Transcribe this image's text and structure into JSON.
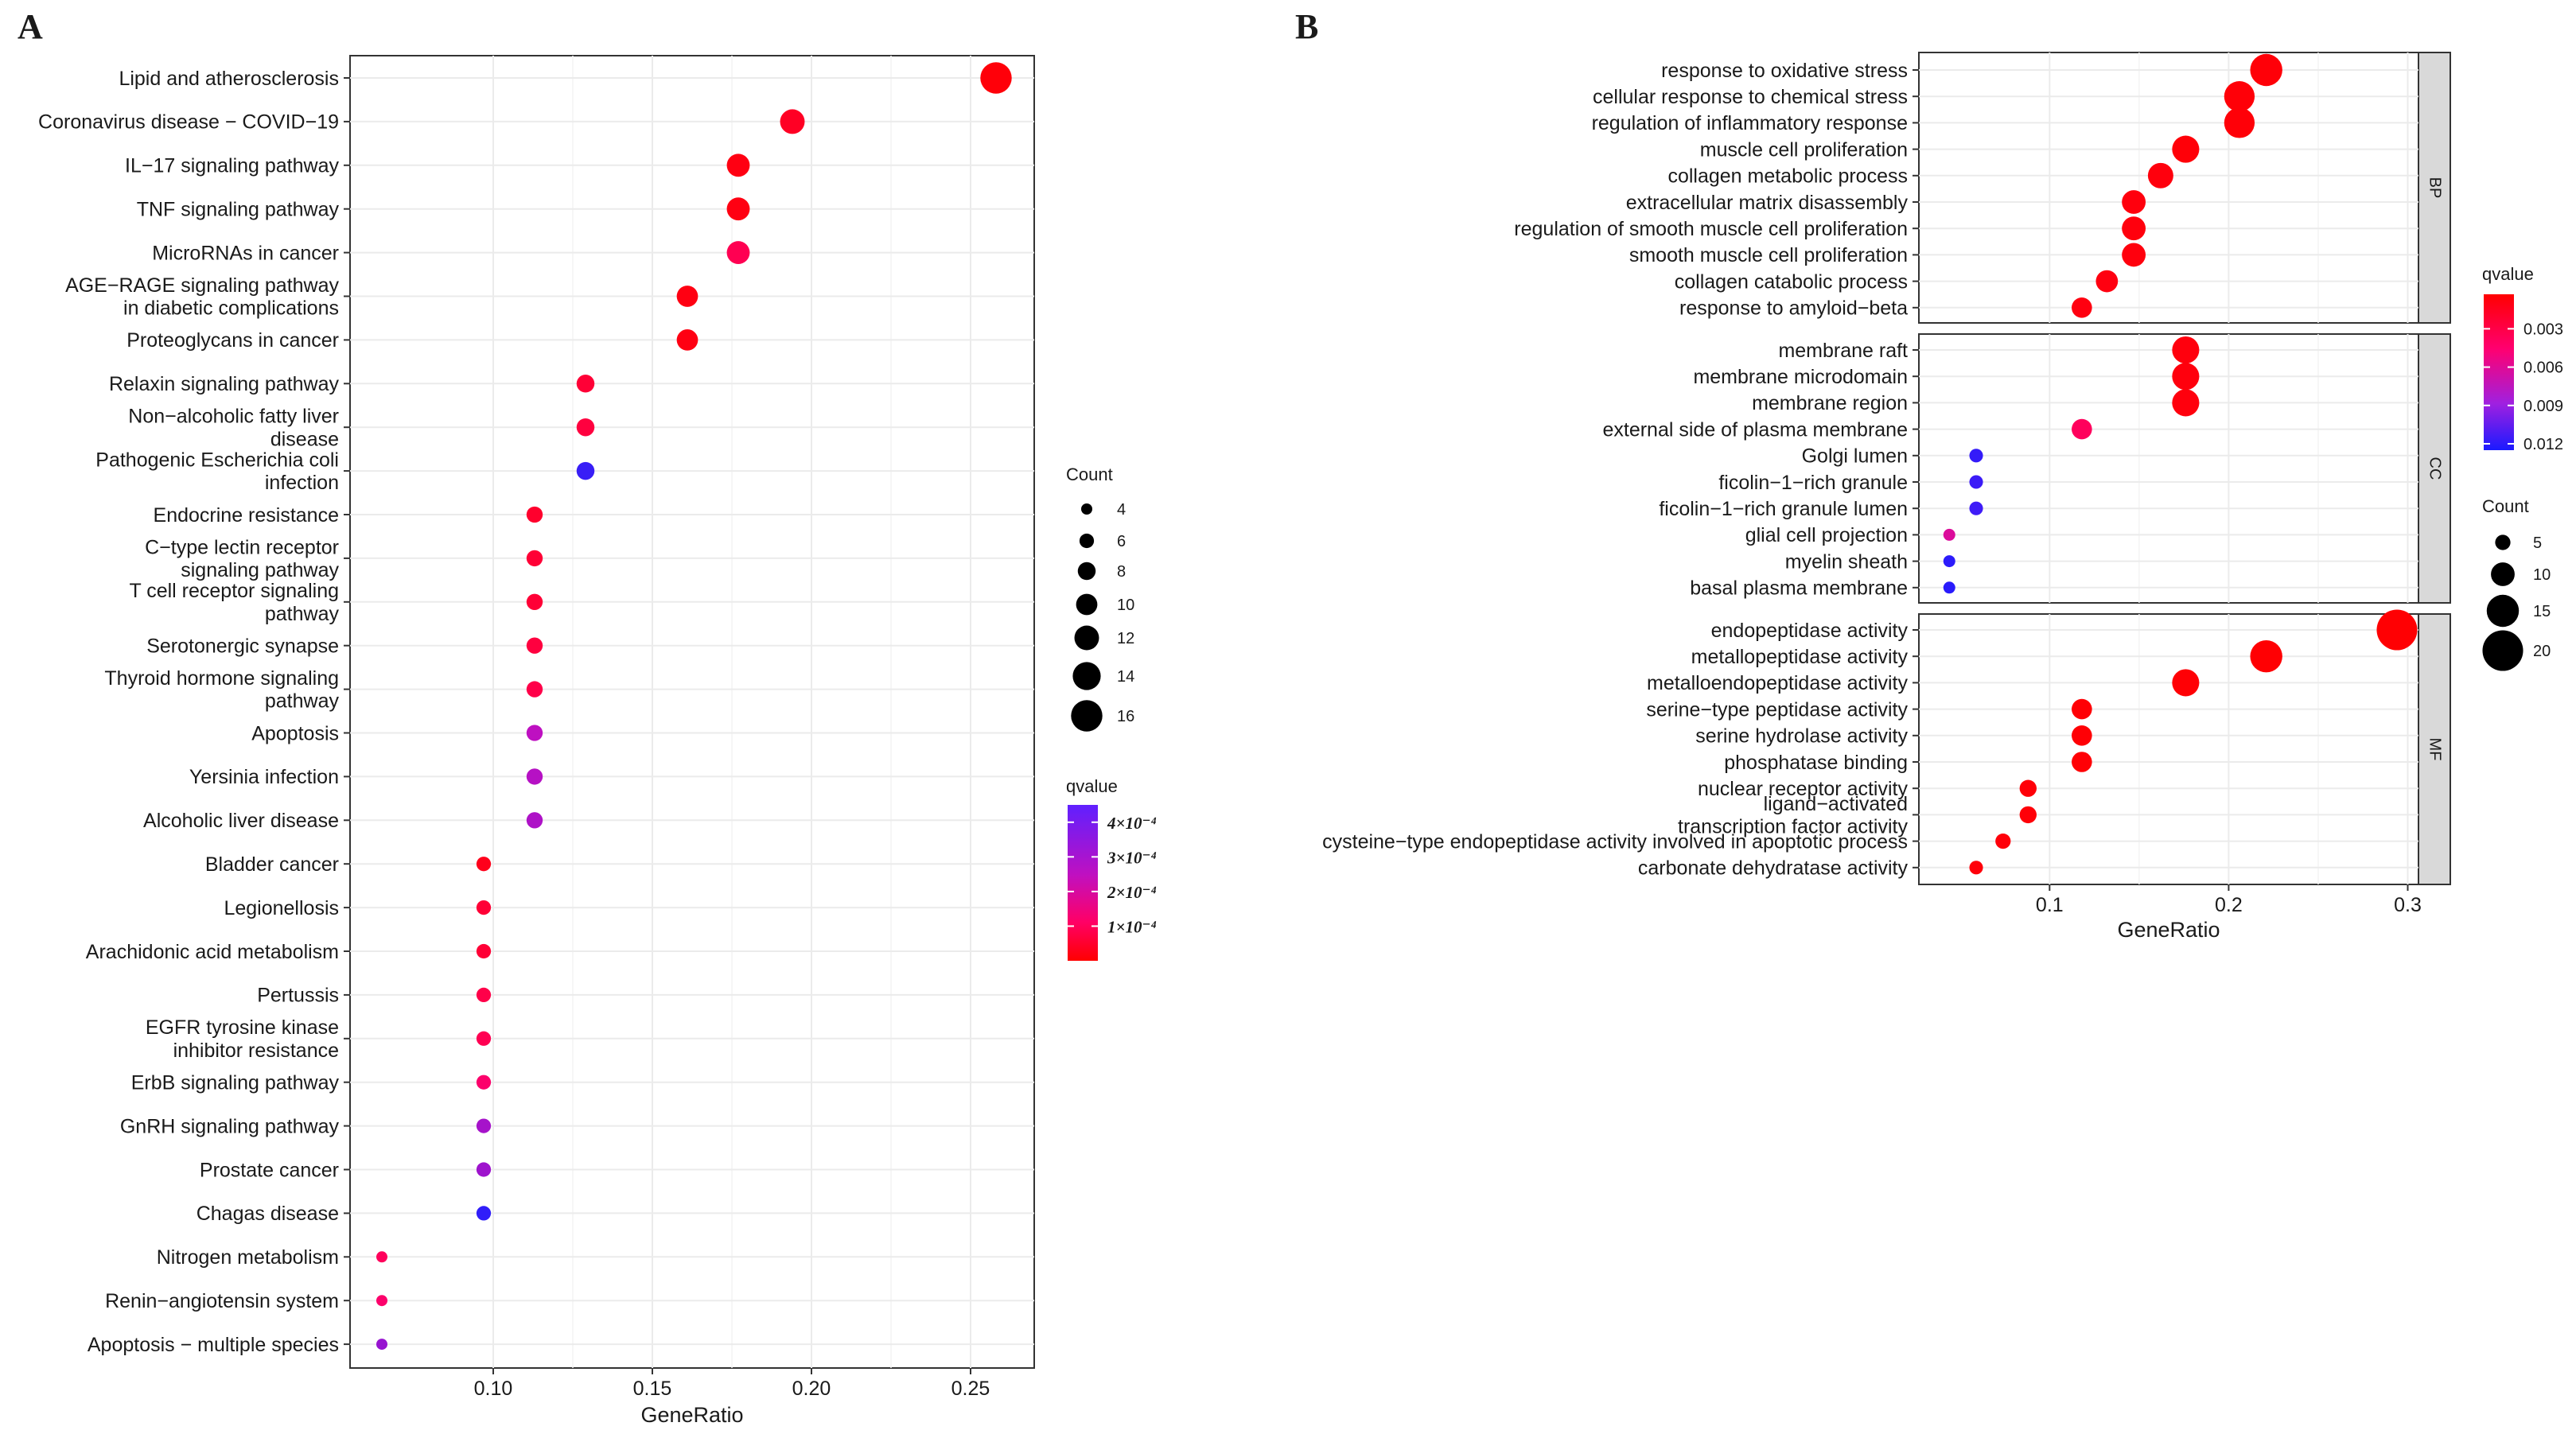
{
  "panels": {
    "a_label": "A",
    "b_label": "B"
  },
  "colors": {
    "low_q": "#ff0000",
    "mid_q": "#a020f0",
    "high_q": "#0000ff",
    "panel_bg": "#ffffff",
    "grid": "#ebebeb",
    "strip_bg": "#d9d9d9"
  },
  "chart_data": [
    {
      "type": "scatter",
      "panel": "A",
      "xlabel": "GeneRatio",
      "ylabel": "",
      "xlim": [
        0.055,
        0.27
      ],
      "xticks": [
        0.1,
        0.15,
        0.2,
        0.25
      ],
      "xtick_labels": [
        "0.10",
        "0.15",
        "0.20",
        "0.25"
      ],
      "grid": true,
      "legend_position": "right",
      "size_legend": {
        "title": "Count",
        "breaks": [
          4,
          6,
          8,
          10,
          12,
          14,
          16
        ],
        "labels": [
          "4",
          "6",
          "8",
          "10",
          "12",
          "14",
          "16"
        ]
      },
      "color_legend": {
        "title": "qvalue",
        "min": 0,
        "max": 0.00045,
        "breaks": [
          0.0001,
          0.0002,
          0.0003,
          0.0004
        ],
        "labels": [
          "1×10⁻⁴",
          "2×10⁻⁴",
          "3×10⁻⁴",
          "4×10⁻⁴"
        ]
      },
      "categories": [
        "Lipid and atherosclerosis",
        "Coronavirus disease − COVID−19",
        "IL−17 signaling pathway",
        "TNF signaling pathway",
        "MicroRNAs in cancer",
        "AGE−RAGE signaling pathway\nin diabetic complications",
        "Proteoglycans in cancer",
        "Relaxin signaling pathway",
        "Non−alcoholic fatty liver\ndisease",
        "Pathogenic Escherichia coli\ninfection",
        "Endocrine resistance",
        "C−type lectin receptor\nsignaling pathway",
        "T cell receptor signaling\npathway",
        "Serotonergic synapse",
        "Thyroid hormone signaling\npathway",
        "Apoptosis",
        "Yersinia infection",
        "Alcoholic liver disease",
        "Bladder cancer",
        "Legionellosis",
        "Arachidonic acid metabolism",
        "Pertussis",
        "EGFR tyrosine kinase\ninhibitor resistance",
        "ErbB signaling pathway",
        "GnRH signaling pathway",
        "Prostate cancer",
        "Chagas disease",
        "Nitrogen metabolism",
        "Renin−angiotensin system",
        "Apoptosis − multiple species"
      ],
      "x": [
        0.258,
        0.194,
        0.177,
        0.177,
        0.177,
        0.161,
        0.161,
        0.129,
        0.129,
        0.129,
        0.113,
        0.113,
        0.113,
        0.113,
        0.113,
        0.113,
        0.113,
        0.113,
        0.097,
        0.097,
        0.097,
        0.097,
        0.097,
        0.097,
        0.097,
        0.097,
        0.097,
        0.065,
        0.065,
        0.065
      ],
      "count": [
        16,
        12,
        11,
        11,
        11,
        10,
        10,
        8,
        8,
        8,
        7,
        7,
        7,
        7,
        7,
        7,
        7,
        7,
        6,
        6,
        6,
        6,
        6,
        6,
        6,
        6,
        6,
        4,
        4,
        4
      ],
      "qvalue": [
        1e-05,
        4e-05,
        2e-05,
        2e-05,
        9e-05,
        2e-05,
        2e-05,
        6e-05,
        7e-05,
        0.00042,
        5e-05,
        6e-05,
        6e-05,
        7e-05,
        8e-05,
        0.00025,
        0.00026,
        0.00027,
        3e-05,
        6e-05,
        6e-05,
        8e-05,
        9e-05,
        0.00012,
        0.00028,
        0.00029,
        0.00043,
        0.0001,
        0.00012,
        0.0003
      ]
    },
    {
      "type": "scatter",
      "panel": "B",
      "xlabel": "GeneRatio",
      "ylabel": "",
      "xlim": [
        0.027,
        0.306
      ],
      "xticks": [
        0.1,
        0.2,
        0.3
      ],
      "xtick_labels": [
        "0.1",
        "0.2",
        "0.3"
      ],
      "grid": true,
      "legend_position": "right",
      "color_legend": {
        "title": "qvalue",
        "min": 0.0003,
        "max": 0.0125,
        "breaks": [
          0.003,
          0.006,
          0.009,
          0.012
        ],
        "labels": [
          "0.003",
          "0.006",
          "0.009",
          "0.012"
        ]
      },
      "size_legend": {
        "title": "Count",
        "breaks": [
          5,
          10,
          15,
          20
        ],
        "labels": [
          "5",
          "10",
          "15",
          "20"
        ]
      },
      "facets": [
        {
          "strip": "BP",
          "categories": [
            "response to oxidative stress",
            "cellular response to chemical stress",
            "regulation of inflammatory response",
            "muscle cell proliferation",
            "collagen metabolic process",
            "extracellular matrix disassembly",
            "regulation of smooth muscle cell proliferation",
            "smooth muscle cell proliferation",
            "collagen catabolic process",
            "response to amyloid−beta"
          ],
          "x": [
            0.221,
            0.206,
            0.206,
            0.176,
            0.162,
            0.147,
            0.147,
            0.147,
            0.132,
            0.118
          ],
          "count": [
            15,
            14,
            14,
            12,
            11,
            10,
            10,
            10,
            9,
            8
          ],
          "qvalue": [
            0.0006,
            0.0006,
            0.0006,
            0.0006,
            0.0008,
            0.0008,
            0.0008,
            0.0008,
            0.0009,
            0.0009
          ]
        },
        {
          "strip": "CC",
          "categories": [
            "membrane raft",
            "membrane microdomain",
            "membrane region",
            "external side of plasma membrane",
            "Golgi lumen",
            "ficolin−1−rich granule",
            "ficolin−1−rich granule lumen",
            "glial cell projection",
            "myelin sheath",
            "basal plasma membrane"
          ],
          "x": [
            0.176,
            0.176,
            0.176,
            0.118,
            0.059,
            0.059,
            0.059,
            0.044,
            0.044,
            0.044
          ],
          "count": [
            12,
            12,
            12,
            8,
            4,
            4,
            4,
            3,
            3,
            3
          ],
          "qvalue": [
            0.0008,
            0.0008,
            0.0008,
            0.0038,
            0.0118,
            0.0116,
            0.0115,
            0.0062,
            0.012,
            0.0121
          ]
        },
        {
          "strip": "MF",
          "categories": [
            "endopeptidase activity",
            "metallopeptidase activity",
            "metalloendopeptidase activity",
            "serine−type peptidase activity",
            "serine hydrolase activity",
            "phosphatase binding",
            "nuclear receptor activity",
            "ligand−activated\ntranscription factor activity",
            "cysteine−type endopeptidase activity involved in apoptotic process",
            "carbonate dehydratase activity"
          ],
          "x": [
            0.294,
            0.221,
            0.176,
            0.118,
            0.118,
            0.118,
            0.088,
            0.088,
            0.074,
            0.059
          ],
          "count": [
            20,
            15,
            12,
            8,
            8,
            8,
            6,
            6,
            5,
            4
          ],
          "qvalue": [
            0.0004,
            0.0004,
            0.0005,
            0.0005,
            0.0005,
            0.0005,
            0.0006,
            0.0006,
            0.0007,
            0.0007
          ]
        }
      ]
    }
  ]
}
